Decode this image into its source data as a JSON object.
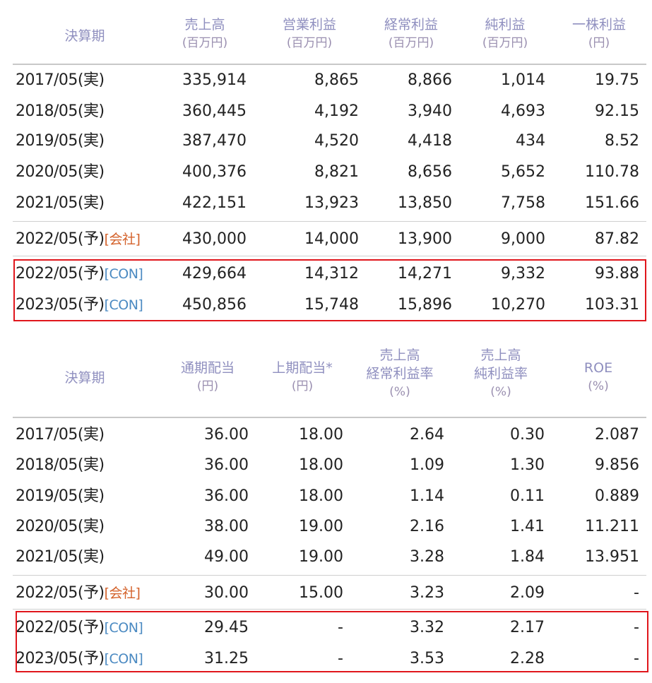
{
  "table1": {
    "headers": [
      {
        "label": "決算期",
        "unit": ""
      },
      {
        "label": "売上高",
        "unit": "(百万円)"
      },
      {
        "label": "営業利益",
        "unit": "(百万円)"
      },
      {
        "label": "経常利益",
        "unit": "(百万円)"
      },
      {
        "label": "純利益",
        "unit": "(百万円)"
      },
      {
        "label": "一株利益",
        "unit": "(円)"
      }
    ],
    "rows": [
      {
        "period": "2017/05(実)",
        "tag": "",
        "tagType": "",
        "values": [
          "335,914",
          "8,865",
          "8,866",
          "1,014",
          "19.75"
        ]
      },
      {
        "period": "2018/05(実)",
        "tag": "",
        "tagType": "",
        "values": [
          "360,445",
          "4,192",
          "3,940",
          "4,693",
          "92.15"
        ]
      },
      {
        "period": "2019/05(実)",
        "tag": "",
        "tagType": "",
        "values": [
          "387,470",
          "4,520",
          "4,418",
          "434",
          "8.52"
        ]
      },
      {
        "period": "2020/05(実)",
        "tag": "",
        "tagType": "",
        "values": [
          "400,376",
          "8,821",
          "8,656",
          "5,652",
          "110.78"
        ]
      },
      {
        "period": "2021/05(実)",
        "tag": "",
        "tagType": "",
        "values": [
          "422,151",
          "13,923",
          "13,850",
          "7,758",
          "151.66"
        ]
      },
      {
        "period": "2022/05(予)",
        "tag": "[会社]",
        "tagType": "co",
        "values": [
          "430,000",
          "14,000",
          "13,900",
          "9,000",
          "87.82"
        ]
      },
      {
        "period": "2022/05(予)",
        "tag": "[CON]",
        "tagType": "con",
        "values": [
          "429,664",
          "14,312",
          "14,271",
          "9,332",
          "93.88"
        ]
      },
      {
        "period": "2023/05(予)",
        "tag": "[CON]",
        "tagType": "con",
        "values": [
          "450,856",
          "15,748",
          "15,896",
          "10,270",
          "103.31"
        ]
      }
    ]
  },
  "table2": {
    "headers": [
      {
        "lines": [
          "決算期"
        ]
      },
      {
        "lines": [
          "通期配当",
          "(円)"
        ]
      },
      {
        "lines": [
          "上期配当*",
          "(円)"
        ]
      },
      {
        "lines": [
          "売上高",
          "経常利益率",
          "(%)"
        ]
      },
      {
        "lines": [
          "売上高",
          "純利益率",
          "(%)"
        ]
      },
      {
        "lines": [
          "ROE",
          "(%)"
        ]
      }
    ],
    "rows": [
      {
        "period": "2017/05(実)",
        "tag": "",
        "tagType": "",
        "values": [
          "36.00",
          "18.00",
          "2.64",
          "0.30",
          "2.087"
        ]
      },
      {
        "period": "2018/05(実)",
        "tag": "",
        "tagType": "",
        "values": [
          "36.00",
          "18.00",
          "1.09",
          "1.30",
          "9.856"
        ]
      },
      {
        "period": "2019/05(実)",
        "tag": "",
        "tagType": "",
        "values": [
          "36.00",
          "18.00",
          "1.14",
          "0.11",
          "0.889"
        ]
      },
      {
        "period": "2020/05(実)",
        "tag": "",
        "tagType": "",
        "values": [
          "38.00",
          "19.00",
          "2.16",
          "1.41",
          "11.211"
        ]
      },
      {
        "period": "2021/05(実)",
        "tag": "",
        "tagType": "",
        "values": [
          "49.00",
          "19.00",
          "3.28",
          "1.84",
          "13.951"
        ]
      },
      {
        "period": "2022/05(予)",
        "tag": "[会社]",
        "tagType": "co",
        "values": [
          "30.00",
          "15.00",
          "3.23",
          "2.09",
          "-"
        ]
      },
      {
        "period": "2022/05(予)",
        "tag": "[CON]",
        "tagType": "con",
        "values": [
          "29.45",
          "-",
          "3.32",
          "2.17",
          "-"
        ]
      },
      {
        "period": "2023/05(予)",
        "tag": "[CON]",
        "tagType": "con",
        "values": [
          "31.25",
          "-",
          "3.53",
          "2.28",
          "-"
        ]
      }
    ]
  },
  "colors": {
    "header": "#8f8fbf",
    "company_tag": "#d4622b",
    "con_tag": "#4b8ac2",
    "highlight_box": "#e0161c"
  }
}
